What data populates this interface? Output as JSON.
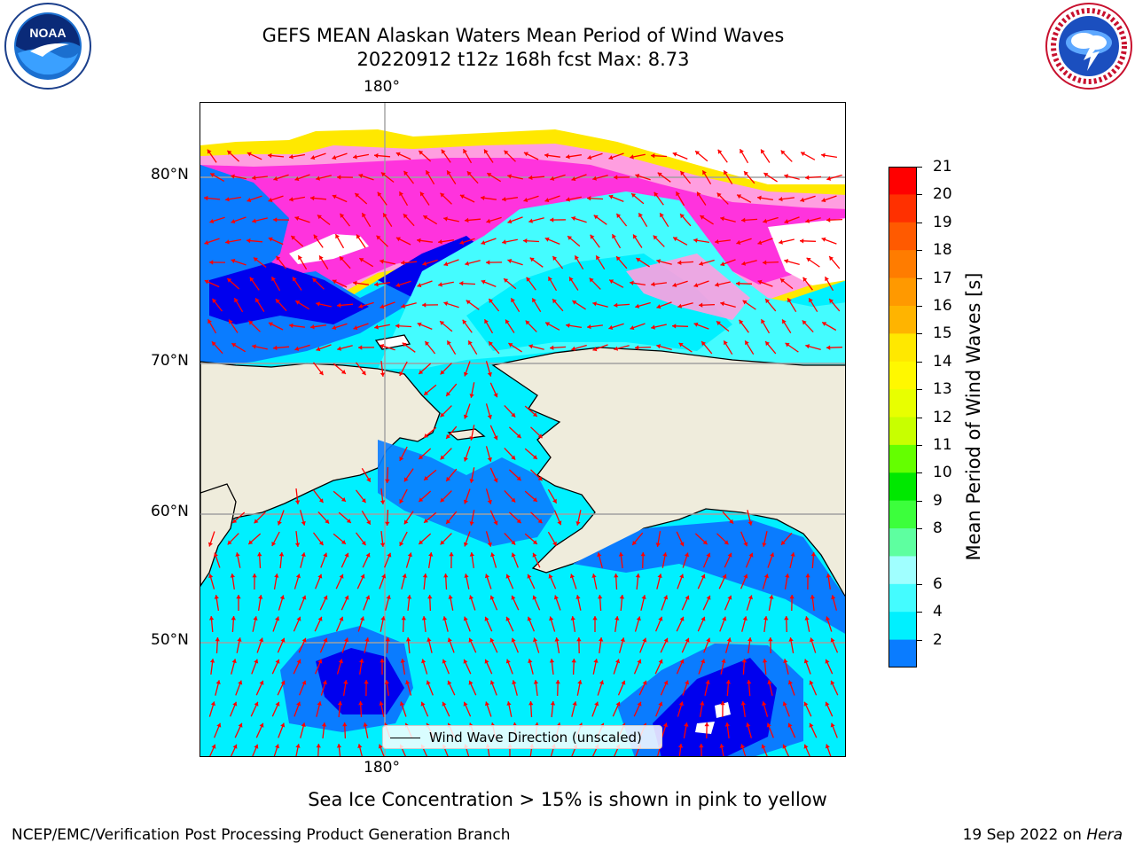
{
  "title": {
    "line1": "GEFS MEAN Alaskan Waters Mean Period of Wind Waves",
    "line2": "20220912 t12z 168h fcst   Max: 8.73"
  },
  "map": {
    "lon_label_top": "180°",
    "lon_label_bottom": "180°",
    "lat_labels": [
      "80°N",
      "70°N",
      "60°N",
      "50°N"
    ],
    "legend_label": "Wind Wave Direction (unscaled)",
    "colors": {
      "land": "#efecdc",
      "ice_low": "#ffe800",
      "ice_mid": "#ff9ee0",
      "ice_high": "#ff33dd",
      "period_lt2": "#0000ee",
      "period_2_4": "#0a7cff",
      "period_4_6": "#00f0ff",
      "period_6_8": "#44fcff",
      "arrow": "#ff0000"
    }
  },
  "colorbar": {
    "label": "Mean Period of Wind Waves [s]",
    "ticks": [
      "21",
      "20",
      "19",
      "18",
      "17",
      "16",
      "15",
      "14",
      "13",
      "12",
      "11",
      "10",
      "9",
      "8",
      "6",
      "4",
      "2"
    ],
    "colors": [
      "#ff0000",
      "#ff3000",
      "#ff5a00",
      "#ff7c00",
      "#ff9900",
      "#ffb400",
      "#ffe800",
      "#fff800",
      "#e8ff00",
      "#c8ff00",
      "#64ff00",
      "#00e800",
      "#3cff3c",
      "#5effa0",
      "#a0ffff",
      "#44fcff",
      "#00f0ff",
      "#0a7cff"
    ]
  },
  "notes": {
    "sea_ice": "Sea Ice Concentration > 15% is shown in pink to yellow",
    "footer_left": "NCEP/EMC/Verification Post Processing Product Generation Branch",
    "footer_date": "19 Sep 2022 on ",
    "footer_host": "Hera"
  },
  "logos": {
    "noaa_text": "NOAA"
  }
}
